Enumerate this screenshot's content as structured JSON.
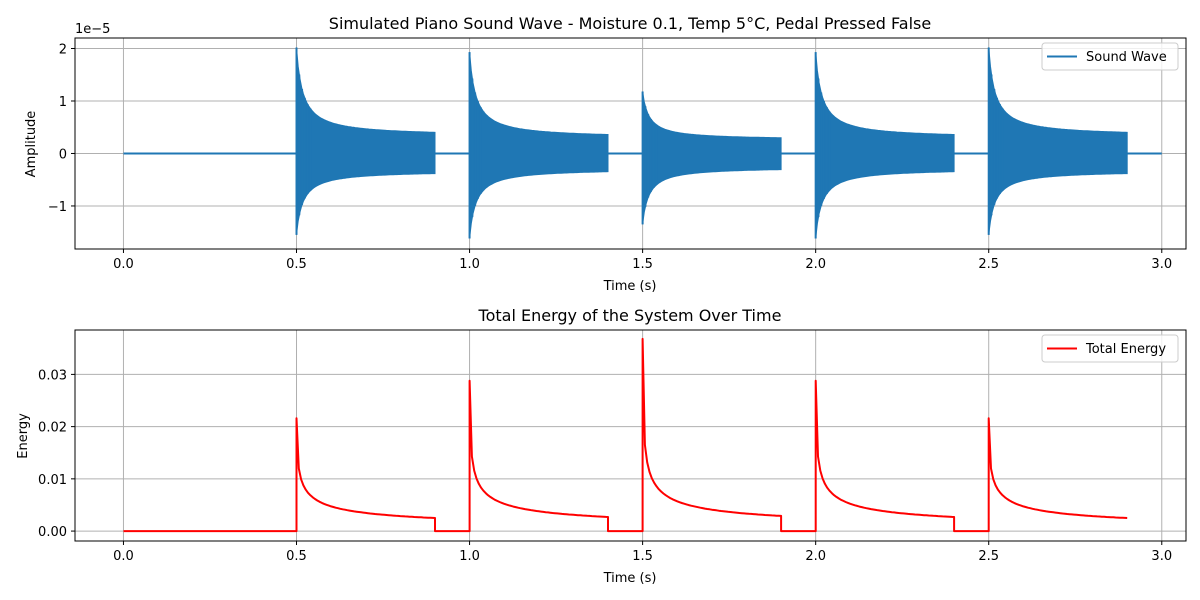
{
  "chart_data": [
    {
      "type": "line",
      "title": "Simulated Piano Sound Wave - Moisture 0.1, Temp 5°C, Pedal Pressed False",
      "xlabel": "Time (s)",
      "ylabel": "Amplitude",
      "offset_text": "1e−5",
      "xlim": [
        -0.14,
        3.07
      ],
      "ylim": [
        -1.82,
        2.2
      ],
      "xticks": [
        0.0,
        0.5,
        1.0,
        1.5,
        2.0,
        2.5,
        3.0
      ],
      "xtick_labels": [
        "0.0",
        "0.5",
        "1.0",
        "1.5",
        "2.0",
        "2.5",
        "3.0"
      ],
      "yticks": [
        -1,
        0,
        1,
        2
      ],
      "ytick_labels": [
        "−1",
        "0",
        "1",
        "2"
      ],
      "grid": true,
      "legend": "top-right",
      "series": [
        {
          "name": "Sound Wave",
          "color": "#1f77b4",
          "baseline": {
            "x": [
              0.0,
              3.0
            ],
            "y": [
              0.0,
              0.0
            ]
          },
          "notes": [
            {
              "start": 0.5,
              "end": 0.9,
              "peak_pos": 2.02,
              "peak_neg": -1.55,
              "tail": 0.33
            },
            {
              "start": 1.0,
              "end": 1.4,
              "peak_pos": 1.93,
              "peak_neg": -1.62,
              "tail": 0.29
            },
            {
              "start": 1.5,
              "end": 1.9,
              "peak_pos": 1.18,
              "peak_neg": -1.35,
              "tail": 0.26
            },
            {
              "start": 2.0,
              "end": 2.4,
              "peak_pos": 1.93,
              "peak_neg": -1.62,
              "tail": 0.29
            },
            {
              "start": 2.5,
              "end": 2.9,
              "peak_pos": 2.02,
              "peak_neg": -1.55,
              "tail": 0.33
            }
          ]
        }
      ]
    },
    {
      "type": "line",
      "title": "Total Energy of the System Over Time",
      "xlabel": "Time (s)",
      "ylabel": "Energy",
      "xlim": [
        -0.14,
        3.07
      ],
      "ylim": [
        -0.0019,
        0.0385
      ],
      "xticks": [
        0.0,
        0.5,
        1.0,
        1.5,
        2.0,
        2.5,
        3.0
      ],
      "xtick_labels": [
        "0.0",
        "0.5",
        "1.0",
        "1.5",
        "2.0",
        "2.5",
        "3.0"
      ],
      "yticks": [
        0.0,
        0.01,
        0.02,
        0.03
      ],
      "ytick_labels": [
        "0.00",
        "0.01",
        "0.02",
        "0.03"
      ],
      "grid": true,
      "legend": "top-right",
      "series": [
        {
          "name": "Total Energy",
          "color": "#ff0000",
          "notes": [
            {
              "start": 0.5,
              "end": 0.9,
              "peak": 0.0216,
              "end_value": 0.0025
            },
            {
              "start": 1.0,
              "end": 1.4,
              "peak": 0.0288,
              "end_value": 0.0027
            },
            {
              "start": 1.5,
              "end": 1.9,
              "peak": 0.0368,
              "end_value": 0.0029
            },
            {
              "start": 2.0,
              "end": 2.4,
              "peak": 0.0288,
              "end_value": 0.0027
            },
            {
              "start": 2.5,
              "end": 2.9,
              "peak": 0.0216,
              "end_value": 0.0025
            }
          ],
          "x_range": [
            0.0,
            2.9
          ]
        }
      ]
    }
  ]
}
